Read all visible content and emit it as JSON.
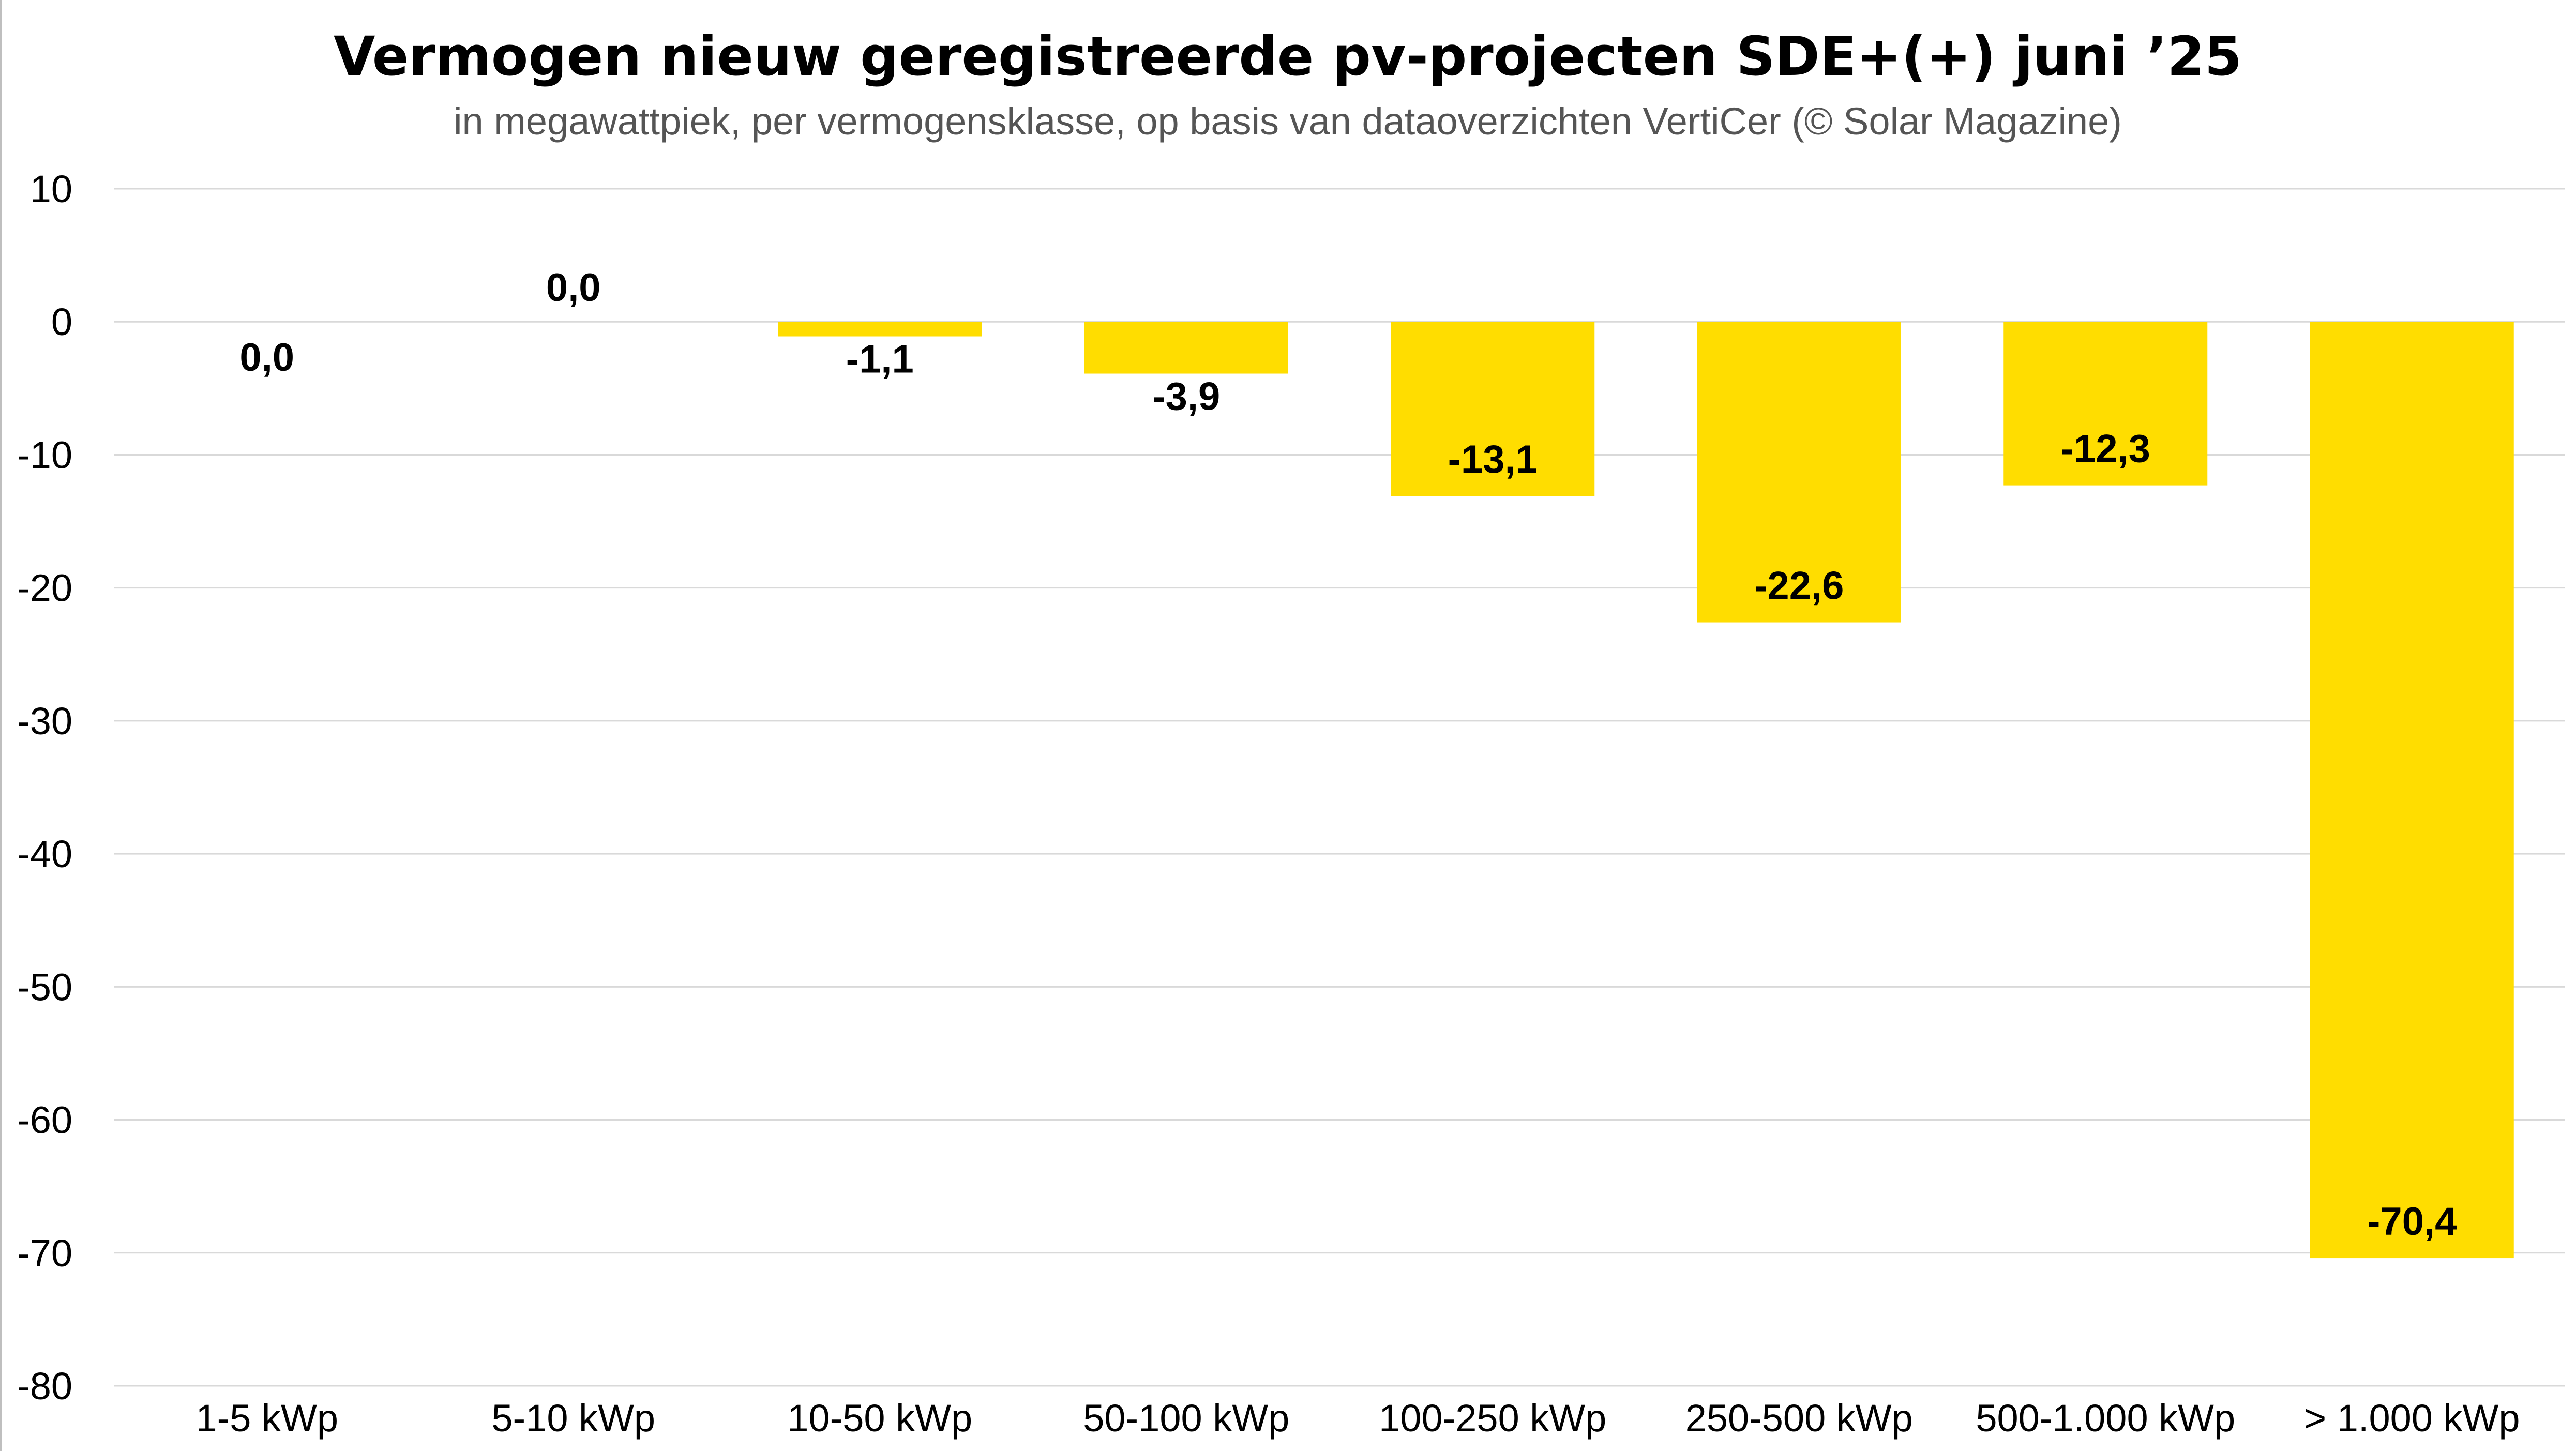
{
  "chart_data": {
    "type": "bar",
    "title": "Vermogen nieuw geregistreerde pv-projecten SDE+(+) juni ’25",
    "subtitle": "in megawattpiek, per vermogensklasse, op basis van dataoverzichten VertiCer (© Solar Magazine)",
    "xlabel": "",
    "ylabel": "",
    "categories": [
      "1-5 kWp",
      "5-10 kWp",
      "10-50 kWp",
      "50-100 kWp",
      "100-250 kWp",
      "250-500 kWp",
      "500-1.000 kWp",
      "> 1.000 kWp"
    ],
    "values": [
      0.0,
      0.0,
      -1.1,
      -3.9,
      -13.1,
      -22.6,
      -12.3,
      -70.4
    ],
    "data_labels": [
      "0,0",
      "0,0",
      "-1,1",
      "-3,9",
      "-13,1",
      "-22,6",
      "-12,3",
      "-70,4"
    ],
    "ylim": [
      -80,
      10
    ],
    "yticks": [
      10,
      0,
      -10,
      -20,
      -30,
      -40,
      -50,
      -60,
      -70,
      -80
    ],
    "ytick_labels": [
      "10",
      "0",
      "-10",
      "-20",
      "-30",
      "-40",
      "-50",
      "-60",
      "-70",
      "-80"
    ],
    "grid": true,
    "legend": "none",
    "bar_color": "#FFDD00"
  }
}
